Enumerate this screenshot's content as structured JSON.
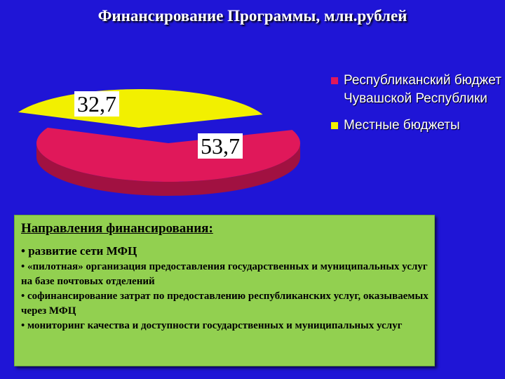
{
  "title": "Финансирование Программы, млн.рублей",
  "chart_data": {
    "type": "pie",
    "style": "3d-exploded",
    "series": [
      {
        "name": "Республиканский бюджет Чувашской Республики",
        "value": 53.7,
        "label": "53,7",
        "color": "#e0185a"
      },
      {
        "name": "Местные бюджеты",
        "value": 32.7,
        "label": "32,7",
        "color": "#f2f000"
      }
    ],
    "legend": "right"
  },
  "panel": {
    "title": "Направления финансирования:",
    "items": [
      "• развитие сети МФЦ",
      "• «пилотная» организация предоставления государственных и муниципальных услуг на базе почтовых отделений",
      "•  софинансирование затрат по предоставлению республиканских услуг, оказываемых через МФЦ",
      "• мониторинг качества и доступности государственных и муниципальных услуг"
    ]
  }
}
